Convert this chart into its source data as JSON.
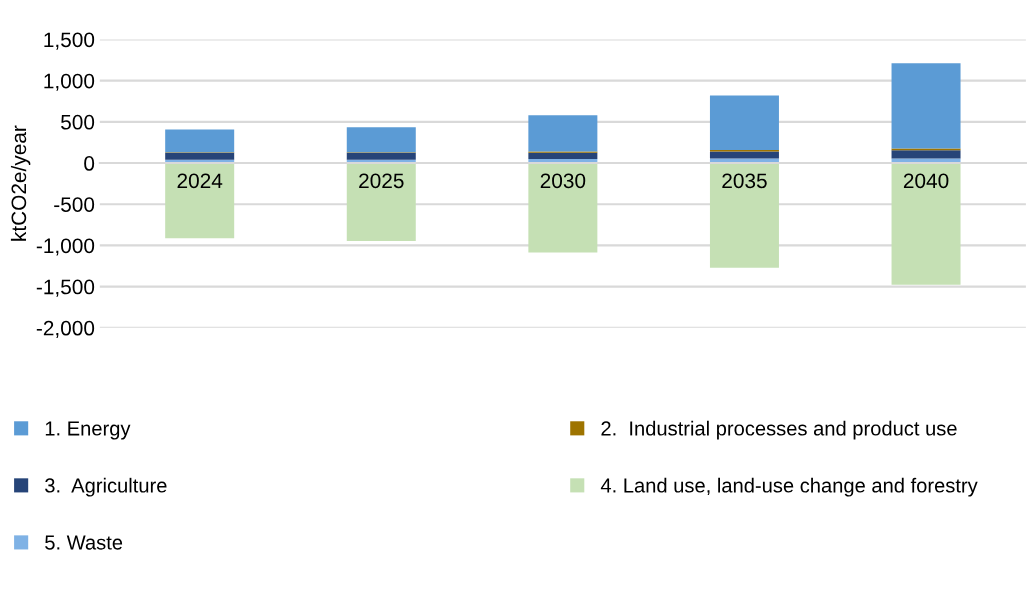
{
  "chart_data": {
    "type": "bar",
    "stacked": true,
    "ylabel": "ktCO2e/year",
    "categories": [
      "2024",
      "2025",
      "2030",
      "2035",
      "2040"
    ],
    "series": [
      {
        "name": "5. Waste",
        "color": "#7fb2e5",
        "values": [
          40,
          40,
          50,
          55,
          55
        ]
      },
      {
        "name": "3.  Agriculture",
        "color": "#264478",
        "values": [
          85,
          85,
          74,
          85,
          100
        ]
      },
      {
        "name": "2.  Industrial processes and product use",
        "color": "#9e7400",
        "values": [
          5,
          5,
          15,
          18,
          22
        ]
      },
      {
        "name": "1. Energy",
        "color": "#5b9bd5",
        "values": [
          278,
          305,
          442,
          662,
          1035
        ]
      },
      {
        "name": "4. Land use, land-use change and forestry",
        "color": "#c5e0b4",
        "values": [
          -912,
          -947,
          -1085,
          -1270,
          -1478
        ]
      }
    ],
    "ylim": [
      -2000,
      1500
    ],
    "yticks": [
      {
        "value": -2000,
        "label": "-2,000"
      },
      {
        "value": -1500,
        "label": "-1,500"
      },
      {
        "value": -1000,
        "label": "-1,000"
      },
      {
        "value": -500,
        "label": "-500"
      },
      0,
      {
        "value": 500,
        "label": "500"
      },
      {
        "value": 1000,
        "label": "1,000"
      },
      {
        "value": 1500,
        "label": "1,500"
      }
    ],
    "grid": "y",
    "legend": "bottom"
  }
}
